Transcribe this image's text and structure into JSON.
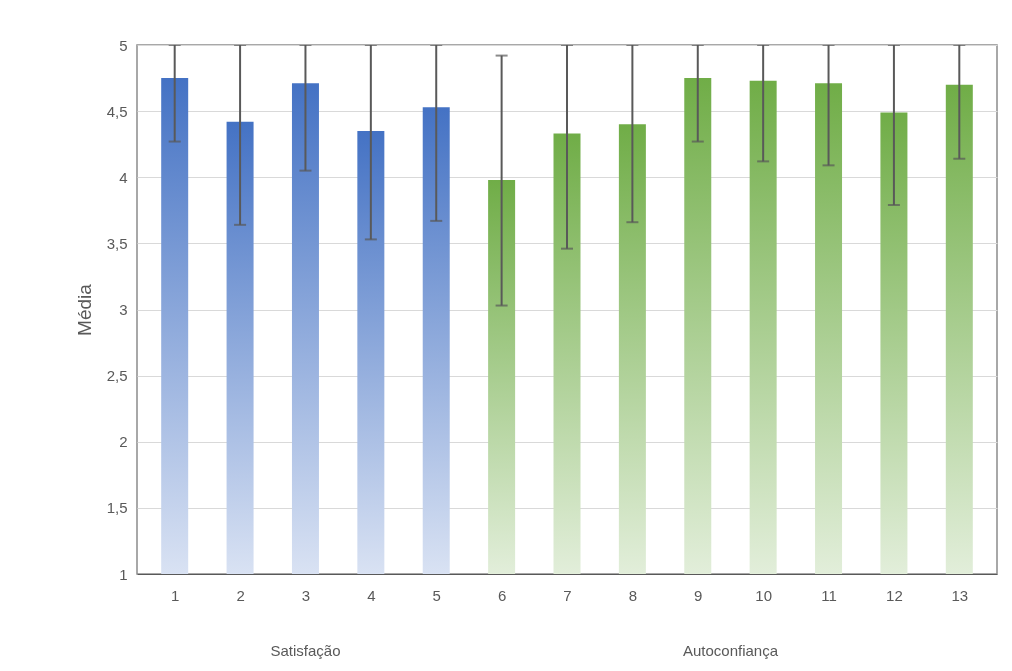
{
  "chart_data": {
    "type": "bar",
    "ylabel": "Média",
    "x": [
      1,
      2,
      3,
      4,
      5,
      6,
      7,
      8,
      9,
      10,
      11,
      12,
      13
    ],
    "xlim": [
      0.5,
      13.5
    ],
    "xticks": [
      1,
      2,
      3,
      4,
      5,
      6,
      7,
      8,
      9,
      10,
      11,
      12,
      13
    ],
    "values": [
      4.75,
      4.42,
      4.71,
      4.35,
      4.53,
      3.98,
      4.33,
      4.4,
      4.75,
      4.73,
      4.71,
      4.49,
      4.7
    ],
    "errors": [
      [
        4.27,
        5
      ],
      [
        3.64,
        5
      ],
      [
        4.05,
        5
      ],
      [
        3.53,
        5
      ],
      [
        3.67,
        5
      ],
      [
        3.03,
        4.92
      ],
      [
        3.46,
        5
      ],
      [
        3.66,
        5
      ],
      [
        4.27,
        5
      ],
      [
        4.12,
        5
      ],
      [
        4.09,
        5
      ],
      [
        3.79,
        5
      ],
      [
        4.14,
        5
      ]
    ],
    "colors": [
      "#4472c4",
      "#4472c4",
      "#4472c4",
      "#4472c4",
      "#4472c4",
      "#70ad47",
      "#70ad47",
      "#70ad47",
      "#70ad47",
      "#70ad47",
      "#70ad47",
      "#70ad47",
      "#70ad47"
    ],
    "ylim": [
      1,
      5
    ],
    "yticks": [
      1,
      {
        "value": 1.5,
        "label": "1,5"
      },
      2,
      {
        "value": 2.5,
        "label": "2,5"
      },
      3,
      {
        "value": 3.5,
        "label": "3,5"
      },
      4,
      {
        "value": 4.5,
        "label": "4,5"
      },
      5
    ],
    "grid": "y",
    "annotations": [
      "Satisfação",
      "Autoconfiança"
    ]
  }
}
